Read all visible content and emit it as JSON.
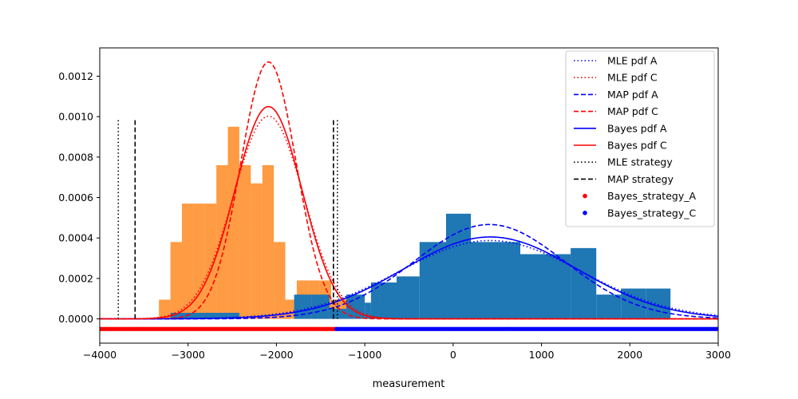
{
  "chart_data": {
    "type": "histogram+line+scatter",
    "title": "",
    "xlabel": "measurement",
    "ylabel": "",
    "xlim": [
      -4000,
      3000
    ],
    "ylim": [
      -0.00012,
      0.00134
    ],
    "x_ticks": [
      -4000,
      -3000,
      -2000,
      -1000,
      0,
      1000,
      2000,
      3000
    ],
    "x_tick_labels": [
      "−4000",
      "−3000",
      "−2000",
      "−1000",
      "0",
      "1000",
      "2000",
      "3000"
    ],
    "y_ticks": [
      0,
      0.0002,
      0.0004,
      0.0006,
      0.0008,
      0.001,
      0.0012
    ],
    "y_tick_labels": [
      "0.0000",
      "0.0002",
      "0.0004",
      "0.0006",
      "0.0008",
      "0.0010",
      "0.0012"
    ],
    "colors": {
      "hist_A": "#1f77b4",
      "hist_C": "#ff7f0e",
      "blue": "#0000ff",
      "red": "#ff0000",
      "black": "#000000"
    },
    "histograms": [
      {
        "name": "hist_C",
        "bin_edges": [
          -3330,
          -3200,
          -3070,
          -2940,
          -2810,
          -2680,
          -2550,
          -2420,
          -2290,
          -2160,
          -2030,
          -1900,
          -1770,
          -1640,
          -1510,
          -1380,
          -1250,
          -1120,
          -990,
          -860,
          -730
        ],
        "heights": [
          9.5e-05,
          0.00038,
          0.00057,
          0.00057,
          0.00057,
          0.00076,
          0.00095,
          0.00076,
          0.00067,
          0.00076,
          0.00038,
          9.5e-05,
          0.00019,
          0.00019,
          0.00019,
          9.5e-05,
          9.5e-05,
          0.0,
          0.0,
          9.5e-05
        ]
      },
      {
        "name": "hist_A",
        "bin_edges": [
          -3200,
          -2420,
          -1800,
          -1600,
          -1400,
          -1210,
          -1000,
          -930,
          -830,
          -640,
          -380,
          -80,
          200,
          480,
          760,
          1040,
          1330,
          1620,
          1900,
          2180,
          2460
        ],
        "heights": [
          3e-05,
          0.0,
          0.00012,
          0.00012,
          5e-05,
          0.00012,
          8e-05,
          0.00018,
          0.00018,
          0.00021,
          0.00038,
          0.00052,
          0.00038,
          0.00038,
          0.00032,
          0.00032,
          0.00035,
          0.00012,
          0.00015,
          0.00015
        ]
      }
    ],
    "series": [
      {
        "name": "MLE pdf A",
        "type": "normal_pdf",
        "mean": 420,
        "std": 1030,
        "color": "#0000ff",
        "dash": "dotted"
      },
      {
        "name": "MLE pdf C",
        "type": "normal_pdf",
        "mean": -2090,
        "std": 398,
        "color": "#ff0000",
        "dash": "dotted"
      },
      {
        "name": "MAP pdf A",
        "type": "normal_pdf",
        "mean": 410,
        "std": 855,
        "color": "#0000ff",
        "dash": "dashed"
      },
      {
        "name": "MAP pdf C",
        "type": "normal_pdf",
        "mean": -2090,
        "std": 314,
        "color": "#ff0000",
        "dash": "dashed"
      },
      {
        "name": "Bayes pdf A",
        "type": "normal_pdf",
        "mean": 420,
        "std": 985,
        "color": "#0000ff",
        "dash": "solid"
      },
      {
        "name": "Bayes pdf C",
        "type": "normal_pdf",
        "mean": -2090,
        "std": 380,
        "color": "#ff0000",
        "dash": "solid"
      }
    ],
    "vlines": [
      {
        "name": "MLE strategy",
        "x": [
          -3790,
          -1310
        ],
        "ymin": 0,
        "ymax": 0.00099,
        "color": "#000000",
        "dash": "dotted"
      },
      {
        "name": "MAP strategy",
        "x": [
          -3600,
          -1355
        ],
        "ymin": 0,
        "ymax": 0.00099,
        "color": "#000000",
        "dash": "dashed"
      }
    ],
    "strategy_points": [
      {
        "name": "Bayes_strategy_A",
        "x_range": [
          -4000,
          -1320
        ],
        "y": -5e-05,
        "color": "#ff0000"
      },
      {
        "name": "Bayes_strategy_C",
        "x_range": [
          -1320,
          3000
        ],
        "y": -5e-05,
        "color": "#0000ff"
      }
    ],
    "legend": {
      "placement": "top-right",
      "entries": [
        {
          "label": "MLE pdf A",
          "kind": "line",
          "color": "#0000ff",
          "dash": "dotted"
        },
        {
          "label": "MLE pdf C",
          "kind": "line",
          "color": "#ff0000",
          "dash": "dotted"
        },
        {
          "label": "MAP pdf A",
          "kind": "line",
          "color": "#0000ff",
          "dash": "dashed"
        },
        {
          "label": "MAP pdf C",
          "kind": "line",
          "color": "#ff0000",
          "dash": "dashed"
        },
        {
          "label": "Bayes pdf A",
          "kind": "line",
          "color": "#0000ff",
          "dash": "solid"
        },
        {
          "label": "Bayes pdf C",
          "kind": "line",
          "color": "#ff0000",
          "dash": "solid"
        },
        {
          "label": "MLE strategy",
          "kind": "line",
          "color": "#000000",
          "dash": "dotted"
        },
        {
          "label": "MAP strategy",
          "kind": "line",
          "color": "#000000",
          "dash": "dashed"
        },
        {
          "label": "Bayes_strategy_A",
          "kind": "marker",
          "color": "#ff0000"
        },
        {
          "label": "Bayes_strategy_C",
          "kind": "marker",
          "color": "#0000ff"
        }
      ]
    }
  }
}
